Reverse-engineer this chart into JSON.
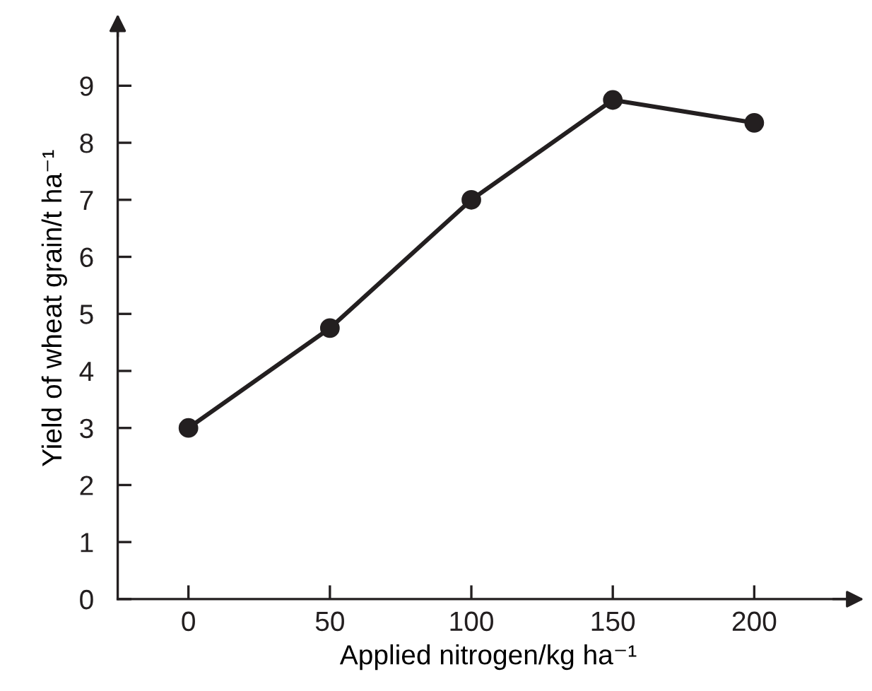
{
  "chart_data": {
    "type": "line",
    "xlabel": "Applied nitrogen/kg ha⁻¹",
    "ylabel": "Yield of wheat grain/t ha⁻¹",
    "x": [
      0,
      50,
      100,
      150,
      200
    ],
    "series": [
      {
        "color": "#231f20",
        "values": [
          3.0,
          4.75,
          7.0,
          8.75,
          8.35
        ]
      }
    ],
    "xlim": [
      -25,
      237
    ],
    "ylim": [
      0,
      10.2
    ],
    "xticks": [
      0,
      50,
      100,
      150,
      200
    ],
    "yticks": [
      0,
      1,
      2,
      3,
      4,
      5,
      6,
      7,
      8,
      9
    ],
    "marker": "circle",
    "line_style": "solid",
    "grid": false,
    "legend": false
  }
}
